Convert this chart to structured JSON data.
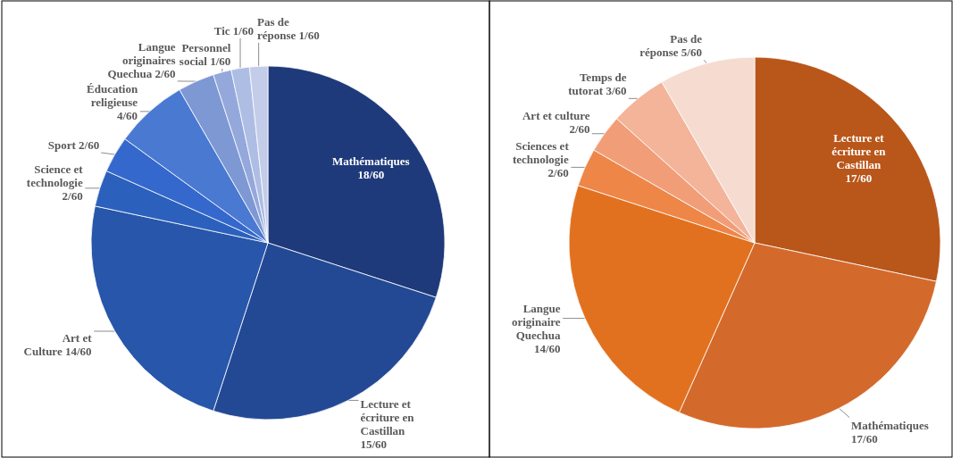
{
  "chart_data": [
    {
      "type": "pie",
      "categories": [
        "Mathématiques",
        "Lecture et écriture en Castillan",
        "Art et Culture",
        "Science et technologie",
        "Sport",
        "Éducation religieuse",
        "Langue originaires Quechua",
        "Personnel social",
        "Tic",
        "Pas de réponse"
      ],
      "values": [
        18,
        15,
        14,
        2,
        2,
        4,
        2,
        1,
        1,
        1
      ],
      "value_labels": [
        "18/60",
        "15/60",
        "14/60",
        "2/60",
        "2/60",
        "4/60",
        "2/60",
        "1/60",
        "1/60",
        "1/60"
      ],
      "colors": [
        "#1f3a7a",
        "#234995",
        "#2756aa",
        "#2c60bd",
        "#3468cc",
        "#4a79d2",
        "#7e98d4",
        "#94a8dc",
        "#aebde3",
        "#c3cdea"
      ]
    },
    {
      "type": "pie",
      "categories": [
        "Lecture et écriture en Castillan",
        "Mathématiques",
        "Langue originaire Quechua",
        "Sciences et technologie",
        "Art et culture",
        "Temps de tutorat",
        "Pas de réponse"
      ],
      "values": [
        17,
        17,
        14,
        2,
        2,
        3,
        5
      ],
      "value_labels": [
        "17/60",
        "17/60",
        "14/60",
        "2/60",
        "2/60",
        "3/60",
        "5/60"
      ],
      "colors": [
        "#b9561a",
        "#d36a2c",
        "#e2711f",
        "#ee8648",
        "#f19e78",
        "#f3b49a",
        "#f6dbd0"
      ]
    }
  ]
}
